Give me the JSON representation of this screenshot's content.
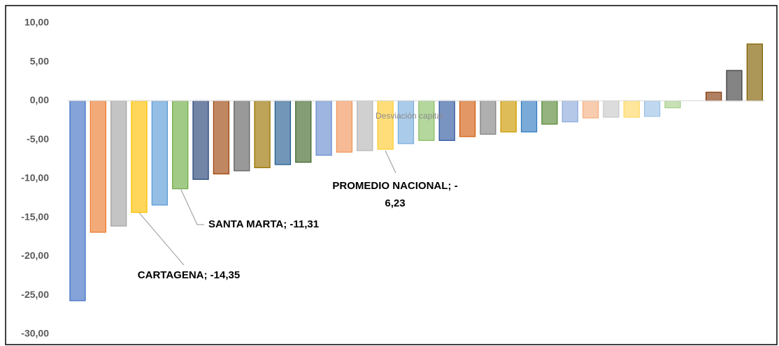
{
  "chart_data": {
    "type": "bar",
    "series_name": "Desviación capital",
    "values": [
      -25.7,
      -16.9,
      -16.1,
      -14.35,
      -13.4,
      -11.31,
      -10.1,
      -9.4,
      -9.0,
      -8.6,
      -8.2,
      -7.9,
      -7.0,
      -6.6,
      -6.4,
      -6.23,
      -5.5,
      -5.1,
      -5.1,
      -4.6,
      -4.3,
      -4.0,
      -4.0,
      -3.0,
      -2.7,
      -2.2,
      -2.1,
      -2.1,
      -2.0,
      -0.9,
      0,
      1.1,
      3.9,
      7.3
    ],
    "colors": [
      "#4472c4",
      "#ed7d31",
      "#a5a5a5",
      "#ffc000",
      "#5b9bd5",
      "#70ad47",
      "#264478",
      "#9e480e",
      "#636363",
      "#997300",
      "#255e91",
      "#43682b",
      "#698ed0",
      "#f1975a",
      "#b7b7b7",
      "#ffcd33",
      "#7cafdd",
      "#8cc168",
      "#335aa1",
      "#d26012",
      "#848484",
      "#cc9a00",
      "#327dc2",
      "#5a8a39",
      "#8faadc",
      "#f4b183",
      "#c9c9c9",
      "#ffd966",
      "#9dc3e6",
      "#a9d18e",
      "#7f7f7f",
      "#843c0c",
      "#404040",
      "#7f6000"
    ],
    "ylim": [
      -30,
      10
    ],
    "yticks": [
      {
        "value": 10,
        "label": "10,00"
      },
      {
        "value": 5,
        "label": "5,00"
      },
      {
        "value": 0,
        "label": "0,00"
      },
      {
        "value": -5,
        "label": "-5,00"
      },
      {
        "value": -10,
        "label": "-10,00"
      },
      {
        "value": -15,
        "label": "-15,00"
      },
      {
        "value": -20,
        "label": "-20,00"
      },
      {
        "value": -25,
        "label": "-25,00"
      },
      {
        "value": -30,
        "label": "-30,00"
      }
    ],
    "annotations": [
      {
        "lines": [
          "CARTAGENA; -14,35"
        ]
      },
      {
        "lines": [
          "SANTA MARTA; -11,31"
        ]
      },
      {
        "lines": [
          "PROMEDIO NACIONAL; -",
          "6,23"
        ]
      }
    ]
  }
}
